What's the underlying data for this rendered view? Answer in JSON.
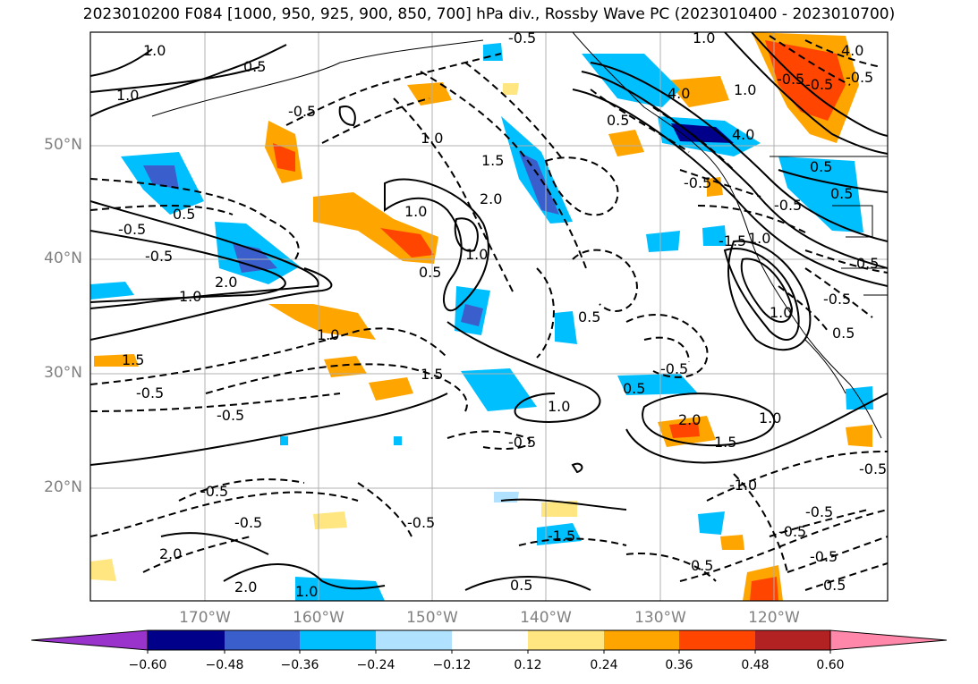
{
  "title": "2023010200 F084 [1000, 950, 925, 900, 850, 700] hPa div., Rossby Wave PC (2023010400 - 2023010700)",
  "axes": {
    "lat_labels": [
      "50°N",
      "40°N",
      "30°N",
      "20°N"
    ],
    "lon_labels": [
      "170°W",
      "160°W",
      "150°W",
      "140°W",
      "130°W",
      "120°W"
    ],
    "gridlines": true
  },
  "contour_labels": [
    "1.0",
    "0.5",
    "1.0",
    "-0.5",
    "-0.5",
    "1.0",
    "1.5",
    "2.0",
    "-0.5",
    "-0.5",
    "0.5",
    "1.0",
    "2.0",
    "1.0",
    "0.5",
    "1.0",
    "1.5",
    "-0.5",
    "1.0",
    "0.5",
    "1.5",
    "0.5",
    "2.0",
    "1.0",
    "1.5",
    "-0.5",
    "-0.5",
    "-0.5",
    "1.0",
    "-0.5",
    "0.5",
    "-0.5",
    "-0.5",
    "4.0",
    "4.0",
    "-0.5",
    "0.5",
    "4.0",
    "1.0",
    "0.5",
    "-0.5",
    "1.0",
    "-1.5",
    "0.5",
    "-0.5",
    "1.0",
    "1.0",
    "-1.0",
    "0.5",
    "-0.5",
    "-0.5",
    "-0.5",
    "0.5",
    "-0.5",
    "-0.5",
    "2.0",
    "2.0",
    "1.0",
    "-0.5",
    "-1.5",
    "0.5",
    "-0.5",
    "0.5"
  ],
  "colorbar": {
    "ticks": [
      "−0.60",
      "−0.48",
      "−0.36",
      "−0.24",
      "−0.12",
      "0.12",
      "0.24",
      "0.36",
      "0.48",
      "0.60"
    ],
    "colors": [
      "#9933cc",
      "#00008b",
      "#3a5fcd",
      "#00bfff",
      "#b0e2ff",
      "#ffffff",
      "#ffe680",
      "#ffa500",
      "#ff4500",
      "#b22222",
      "#ff88aa"
    ],
    "extend": "both"
  },
  "colors": {
    "dark_blue": "#00008b",
    "blue": "#3a5fcd",
    "cyan": "#00bfff",
    "light_blue": "#b0e2ff",
    "yellow": "#ffe680",
    "orange": "#ffa500",
    "red_orange": "#ff4500",
    "dark_red": "#b22222",
    "contour": "#000000",
    "grid": "#b0b0b0",
    "coast": "#000000"
  }
}
